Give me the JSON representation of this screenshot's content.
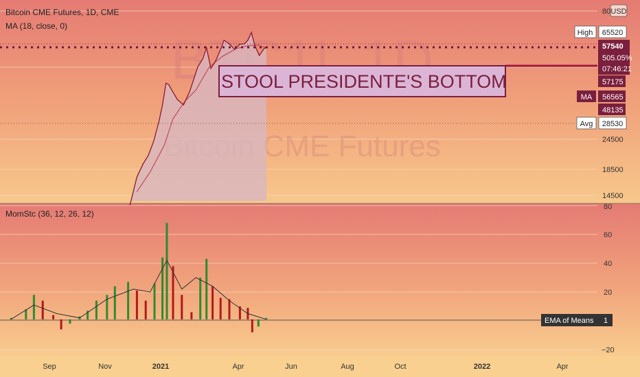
{
  "header": {
    "symbol_line": "Bitcoin CME Futures, 1D, CME",
    "ma_line": "MA (18, close, 0)",
    "currency": "USD"
  },
  "watermark": {
    "ticker": "BTC1!, 1D",
    "name": "Bitcoin CME Futures"
  },
  "annotation": {
    "text": "STOOL PRESIDENTE'S BOTTOM"
  },
  "price_axis": {
    "scale": "log",
    "ticks": [
      "80000",
      "24500",
      "18500",
      "14500"
    ],
    "labels": {
      "high_tag": "High",
      "high_value": "65520",
      "last_price": "57540",
      "last_change": "505.05%",
      "countdown": "07:46:21",
      "level_57175": "57175",
      "ma_tag": "MA",
      "ma_value": "56565",
      "level_48135": "48135",
      "avg_tag": "Avg",
      "avg_value": "28530"
    }
  },
  "indicator": {
    "title": "MomStc (36, 12, 26, 12)",
    "ticks": [
      "80",
      "60",
      "40",
      "20",
      "−20"
    ],
    "ema_tag": "EMA of Means",
    "ema_value": "1"
  },
  "time_axis": {
    "labels": [
      "Sep",
      "Nov",
      "2021",
      "Apr",
      "Jun",
      "Aug",
      "Oct",
      "2022",
      "Apr"
    ]
  },
  "colors": {
    "up": "#2e8b2e",
    "down": "#b01a1a",
    "price_line": "#8b1a2e",
    "ma_line": "#c04a5a",
    "label_bg": "#7a1f3d",
    "annotation_bg": "#dcb5d6",
    "annotation_text": "#7a1f3d"
  },
  "chart_data": [
    {
      "type": "area",
      "title": "Bitcoin CME Futures, 1D, CME",
      "yscale": "log",
      "ylim": [
        12500,
        82000
      ],
      "series": [
        {
          "name": "Bitcoin CME Futures",
          "x": [
            "2020-11-27",
            "2020-12-05",
            "2020-12-12",
            "2020-12-18",
            "2020-12-24",
            "2020-12-30",
            "2021-01-03",
            "2021-01-07",
            "2021-01-10",
            "2021-01-14",
            "2021-01-20",
            "2021-01-27",
            "2021-02-03",
            "2021-02-08",
            "2021-02-12",
            "2021-02-18",
            "2021-02-22",
            "2021-02-27",
            "2021-03-04",
            "2021-03-10",
            "2021-03-14",
            "2021-03-20",
            "2021-03-26",
            "2021-04-01",
            "2021-04-06",
            "2021-04-10",
            "2021-04-14",
            "2021-04-18",
            "2021-04-23",
            "2021-04-28",
            "2021-05-01"
          ],
          "values": [
            13200,
            17200,
            19400,
            21000,
            23900,
            28700,
            33500,
            41000,
            40500,
            38200,
            35200,
            33500,
            38000,
            43000,
            47600,
            51500,
            57000,
            47000,
            50000,
            56000,
            61000,
            59000,
            56000,
            58800,
            59000,
            61000,
            65520,
            58000,
            53000,
            56200,
            57540
          ]
        },
        {
          "name": "MA (18, close, 0)",
          "x": [
            "2020-12-05",
            "2020-12-20",
            "2021-01-05",
            "2021-01-15",
            "2021-01-28",
            "2021-02-10",
            "2021-02-25",
            "2021-03-12",
            "2021-03-28",
            "2021-04-10",
            "2021-04-22",
            "2021-05-01"
          ],
          "values": [
            15000,
            18000,
            23000,
            29500,
            34500,
            38500,
            47500,
            52500,
            56500,
            58000,
            58300,
            56565
          ]
        }
      ],
      "levels": {
        "high": 65520,
        "last": 57540,
        "ma": 56565,
        "avg": 28530,
        "level_a": 57175,
        "level_b": 48135
      }
    },
    {
      "type": "bar",
      "title": "MomStc (36, 12, 26, 12)",
      "ylim": [
        -22,
        82
      ],
      "series": [
        {
          "name": "MomStc",
          "x": [
            "2020-07-15",
            "2020-08-01",
            "2020-08-10",
            "2020-08-20",
            "2020-09-01",
            "2020-09-10",
            "2020-09-20",
            "2020-10-01",
            "2020-10-10",
            "2020-10-20",
            "2020-11-01",
            "2020-11-10",
            "2020-11-25",
            "2020-12-05",
            "2020-12-15",
            "2020-12-25",
            "2021-01-03",
            "2021-01-08",
            "2021-01-15",
            "2021-01-25",
            "2021-02-05",
            "2021-02-15",
            "2021-02-22",
            "2021-03-01",
            "2021-03-10",
            "2021-03-20",
            "2021-04-01",
            "2021-04-10",
            "2021-04-15",
            "2021-04-22",
            "2021-05-01"
          ],
          "values": [
            2,
            8,
            18,
            14,
            4,
            -6,
            -2,
            3,
            7,
            14,
            18,
            24,
            27,
            21,
            14,
            26,
            44,
            68,
            38,
            18,
            6,
            30,
            43,
            24,
            16,
            15,
            10,
            9,
            -8,
            -4,
            2
          ]
        },
        {
          "name": "Mean",
          "x": [
            "2020-07-15",
            "2020-08-10",
            "2020-09-05",
            "2020-10-01",
            "2020-11-01",
            "2020-12-01",
            "2020-12-20",
            "2021-01-08",
            "2021-01-25",
            "2021-02-10",
            "2021-03-01",
            "2021-03-20",
            "2021-04-10",
            "2021-05-01"
          ],
          "values": [
            1,
            11,
            5,
            2,
            15,
            22,
            20,
            42,
            22,
            30,
            24,
            14,
            5,
            1
          ]
        }
      ],
      "baseline": 1
    }
  ]
}
